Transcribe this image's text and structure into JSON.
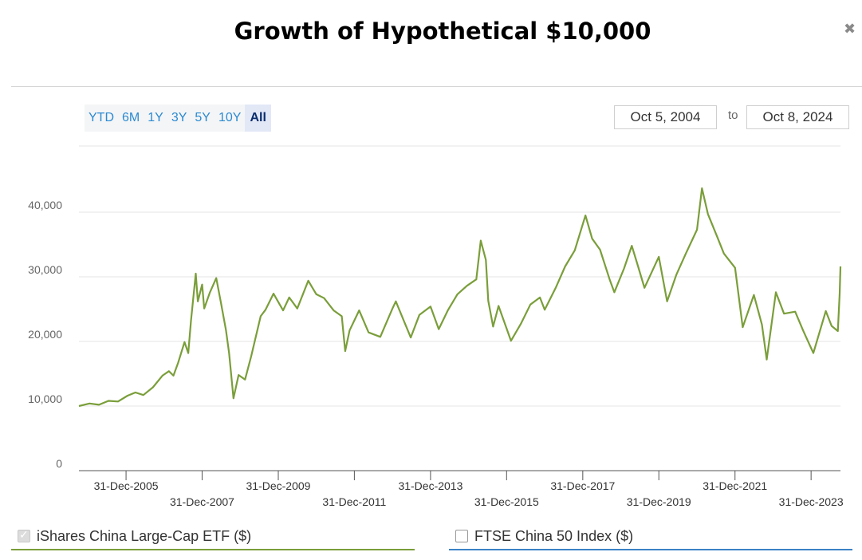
{
  "header": {
    "title": "Growth of Hypothetical $10,000",
    "close_icon": "close-icon"
  },
  "range_buttons": [
    "YTD",
    "6M",
    "1Y",
    "3Y",
    "5Y",
    "10Y",
    "All"
  ],
  "active_range": "All",
  "date_range": {
    "from": "Oct 5, 2004",
    "to_label": "to",
    "to": "Oct 8, 2024"
  },
  "legend": [
    {
      "label": "iShares China Large-Cap ETF ($)",
      "checked": true,
      "color": "#7a9e3a"
    },
    {
      "label": "FTSE China 50 Index ($)",
      "checked": false,
      "color": "#3b82c6"
    }
  ],
  "chart_data": {
    "type": "line",
    "xlim": [
      "2004-10-05",
      "2024-10-08"
    ],
    "ylim": [
      0,
      45000
    ],
    "y_ticks": [
      0,
      10000,
      20000,
      30000,
      40000
    ],
    "y_tick_labels": [
      "0",
      "10,000",
      "20,000",
      "30,000",
      "40,000"
    ],
    "x_ticks": [
      "2005-12-31",
      "2007-12-31",
      "2009-12-31",
      "2011-12-31",
      "2013-12-31",
      "2015-12-31",
      "2017-12-31",
      "2019-12-31",
      "2021-12-31",
      "2023-12-31"
    ],
    "x_tick_labels": [
      "31-Dec-2005",
      "31-Dec-2007",
      "31-Dec-2009",
      "31-Dec-2011",
      "31-Dec-2013",
      "31-Dec-2015",
      "31-Dec-2017",
      "31-Dec-2019",
      "31-Dec-2021",
      "31-Dec-2023"
    ],
    "grid": true,
    "series": [
      {
        "name": "iShares China Large-Cap ETF ($)",
        "color": "#7a9e3a",
        "points": [
          [
            "2004-10-05",
            10000
          ],
          [
            "2005-01-15",
            10400
          ],
          [
            "2005-04-15",
            10200
          ],
          [
            "2005-07-15",
            10800
          ],
          [
            "2005-10-15",
            10700
          ],
          [
            "2006-01-15",
            11600
          ],
          [
            "2006-03-31",
            12100
          ],
          [
            "2006-06-15",
            11700
          ],
          [
            "2006-09-15",
            12900
          ],
          [
            "2006-12-15",
            14700
          ],
          [
            "2007-02-15",
            15400
          ],
          [
            "2007-03-31",
            14700
          ],
          [
            "2007-05-15",
            16700
          ],
          [
            "2007-07-15",
            19900
          ],
          [
            "2007-08-20",
            18200
          ],
          [
            "2007-09-15",
            23200
          ],
          [
            "2007-10-31",
            30500
          ],
          [
            "2007-11-20",
            26200
          ],
          [
            "2007-12-31",
            28800
          ],
          [
            "2008-01-20",
            25100
          ],
          [
            "2008-03-15",
            27600
          ],
          [
            "2008-05-15",
            29800
          ],
          [
            "2008-06-30",
            25900
          ],
          [
            "2008-08-15",
            21800
          ],
          [
            "2008-09-15",
            18200
          ],
          [
            "2008-10-27",
            11200
          ],
          [
            "2008-12-15",
            14800
          ],
          [
            "2009-02-15",
            14100
          ],
          [
            "2009-04-15",
            17700
          ],
          [
            "2009-07-15",
            23900
          ],
          [
            "2009-08-31",
            24900
          ],
          [
            "2009-11-15",
            27400
          ],
          [
            "2010-02-15",
            24800
          ],
          [
            "2010-04-15",
            26800
          ],
          [
            "2010-07-01",
            25100
          ],
          [
            "2010-10-15",
            29400
          ],
          [
            "2010-12-31",
            27300
          ],
          [
            "2011-03-15",
            26700
          ],
          [
            "2011-06-15",
            24800
          ],
          [
            "2011-09-01",
            23900
          ],
          [
            "2011-10-04",
            18500
          ],
          [
            "2011-11-15",
            21700
          ],
          [
            "2012-02-15",
            24800
          ],
          [
            "2012-05-15",
            21400
          ],
          [
            "2012-09-05",
            20700
          ],
          [
            "2012-12-31",
            25100
          ],
          [
            "2013-02-01",
            26200
          ],
          [
            "2013-06-24",
            20600
          ],
          [
            "2013-09-15",
            24100
          ],
          [
            "2013-12-31",
            25400
          ],
          [
            "2014-03-20",
            21900
          ],
          [
            "2014-06-15",
            24800
          ],
          [
            "2014-09-15",
            27300
          ],
          [
            "2014-12-15",
            28600
          ],
          [
            "2015-03-15",
            29600
          ],
          [
            "2015-04-27",
            35600
          ],
          [
            "2015-06-15",
            32600
          ],
          [
            "2015-07-08",
            26300
          ],
          [
            "2015-08-24",
            22300
          ],
          [
            "2015-10-15",
            25500
          ],
          [
            "2016-02-11",
            20100
          ],
          [
            "2016-05-15",
            22700
          ],
          [
            "2016-08-15",
            25700
          ],
          [
            "2016-11-15",
            26800
          ],
          [
            "2016-12-31",
            24900
          ],
          [
            "2017-04-15",
            28300
          ],
          [
            "2017-07-15",
            31600
          ],
          [
            "2017-10-15",
            34100
          ],
          [
            "2018-01-26",
            39500
          ],
          [
            "2018-03-31",
            35900
          ],
          [
            "2018-06-15",
            34200
          ],
          [
            "2018-09-15",
            29600
          ],
          [
            "2018-10-30",
            27600
          ],
          [
            "2019-01-31",
            31300
          ],
          [
            "2019-04-15",
            34800
          ],
          [
            "2019-06-15",
            31600
          ],
          [
            "2019-08-15",
            28300
          ],
          [
            "2019-12-31",
            33100
          ],
          [
            "2020-03-19",
            26200
          ],
          [
            "2020-06-15",
            30300
          ],
          [
            "2020-09-15",
            33600
          ],
          [
            "2020-12-31",
            37300
          ],
          [
            "2021-02-17",
            43700
          ],
          [
            "2021-04-15",
            39700
          ],
          [
            "2021-07-15",
            36100
          ],
          [
            "2021-09-15",
            33600
          ],
          [
            "2021-12-31",
            31400
          ],
          [
            "2022-03-15",
            22200
          ],
          [
            "2022-06-30",
            27200
          ],
          [
            "2022-09-15",
            22600
          ],
          [
            "2022-10-31",
            17200
          ],
          [
            "2023-01-27",
            27600
          ],
          [
            "2023-04-15",
            24300
          ],
          [
            "2023-07-31",
            24600
          ],
          [
            "2023-10-15",
            21700
          ],
          [
            "2024-01-22",
            18200
          ],
          [
            "2024-05-20",
            24700
          ],
          [
            "2024-07-15",
            22400
          ],
          [
            "2024-09-13",
            21600
          ],
          [
            "2024-09-30",
            27400
          ],
          [
            "2024-10-08",
            31600
          ]
        ]
      }
    ]
  }
}
